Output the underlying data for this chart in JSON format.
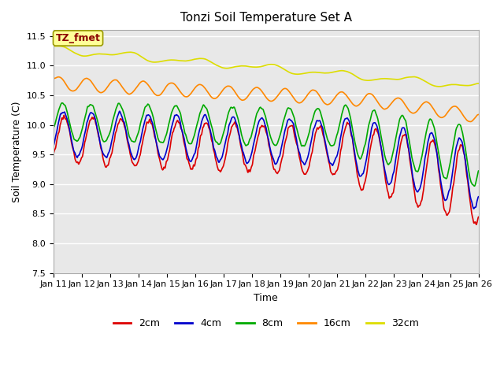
{
  "title": "Tonzi Soil Temperature Set A",
  "xlabel": "Time",
  "ylabel": "Soil Temperature (C)",
  "ylim": [
    7.5,
    11.6
  ],
  "fig_bg": "#ffffff",
  "plot_bg": "#e8e8e8",
  "annotation_text": "TZ_fmet",
  "annotation_color": "#8b0000",
  "annotation_bg": "#ffff99",
  "legend_labels": [
    "2cm",
    "4cm",
    "8cm",
    "16cm",
    "32cm"
  ],
  "legend_colors": [
    "#dd0000",
    "#0000cc",
    "#00aa00",
    "#ff8800",
    "#dddd00"
  ],
  "line_width": 1.2,
  "xtick_labels": [
    "Jan 11",
    "Jan 12",
    "Jan 13",
    "Jan 14",
    "Jan 15",
    "Jan 16",
    "Jan 17",
    "Jan 18",
    "Jan 19",
    "Jan 20",
    "Jan 21",
    "Jan 22",
    "Jan 23",
    "Jan 24",
    "Jan 25",
    "Jan 26"
  ],
  "title_fontsize": 11,
  "label_fontsize": 9,
  "tick_fontsize": 8
}
